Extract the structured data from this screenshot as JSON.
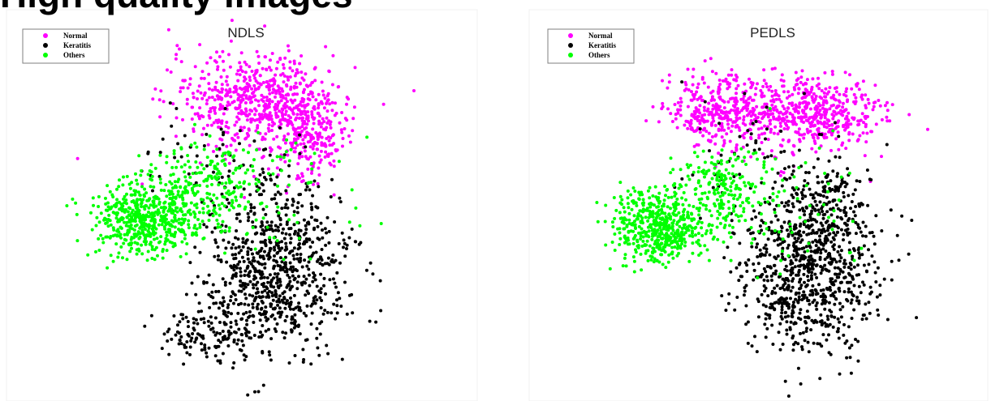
{
  "page": {
    "title": "High quality images"
  },
  "chart_data": [
    {
      "type": "scatter",
      "title": "NDLS",
      "xlabel": "",
      "ylabel": "",
      "grid": false,
      "legend_position": "top-left",
      "xlim": [
        -40,
        40
      ],
      "ylim": [
        -30,
        35
      ],
      "series": [
        {
          "name": "Normal",
          "color": "#ff00ff",
          "clusters": [
            {
              "center": [
                2,
                20
              ],
              "spread": [
                7,
                4
              ],
              "count": 560
            },
            {
              "center": [
                11,
                15
              ],
              "spread": [
                3,
                4
              ],
              "count": 280
            }
          ]
        },
        {
          "name": "Keratitis",
          "color": "#000000",
          "clusters": [
            {
              "center": [
                6,
                -8
              ],
              "spread": [
                6,
                7
              ],
              "count": 800
            },
            {
              "center": [
                -6,
                -19
              ],
              "spread": [
                4,
                2
              ],
              "count": 120
            },
            {
              "center": [
                -4,
                10
              ],
              "spread": [
                6,
                4
              ],
              "count": 60
            }
          ]
        },
        {
          "name": "Others",
          "color": "#00ff00",
          "clusters": [
            {
              "center": [
                -17,
                0
              ],
              "spread": [
                4,
                3
              ],
              "count": 520
            },
            {
              "center": [
                -7,
                5
              ],
              "spread": [
                5,
                4
              ],
              "count": 240
            },
            {
              "center": [
                5,
                4
              ],
              "spread": [
                8,
                6
              ],
              "count": 60
            }
          ]
        }
      ]
    },
    {
      "type": "scatter",
      "title": "PEDLS",
      "xlabel": "",
      "ylabel": "",
      "grid": false,
      "legend_position": "top-left",
      "xlim": [
        -40,
        40
      ],
      "ylim": [
        -30,
        35
      ],
      "series": [
        {
          "name": "Normal",
          "color": "#ff00ff",
          "clusters": [
            {
              "center": [
                -7,
                18
              ],
              "spread": [
                4,
                3
              ],
              "count": 340
            },
            {
              "center": [
                9,
                18
              ],
              "spread": [
                6,
                3
              ],
              "count": 520
            }
          ]
        },
        {
          "name": "Keratitis",
          "color": "#000000",
          "clusters": [
            {
              "center": [
                9,
                -8
              ],
              "spread": [
                6,
                7
              ],
              "count": 860
            },
            {
              "center": [
                12,
                3
              ],
              "spread": [
                3,
                3
              ],
              "count": 120
            },
            {
              "center": [
                -2,
                12
              ],
              "spread": [
                6,
                4
              ],
              "count": 50
            }
          ]
        },
        {
          "name": "Others",
          "color": "#00ff00",
          "clusters": [
            {
              "center": [
                -17,
                -1
              ],
              "spread": [
                4,
                3
              ],
              "count": 520
            },
            {
              "center": [
                -6,
                5
              ],
              "spread": [
                4,
                3
              ],
              "count": 200
            },
            {
              "center": [
                6,
                2
              ],
              "spread": [
                7,
                6
              ],
              "count": 60
            }
          ]
        }
      ]
    }
  ]
}
